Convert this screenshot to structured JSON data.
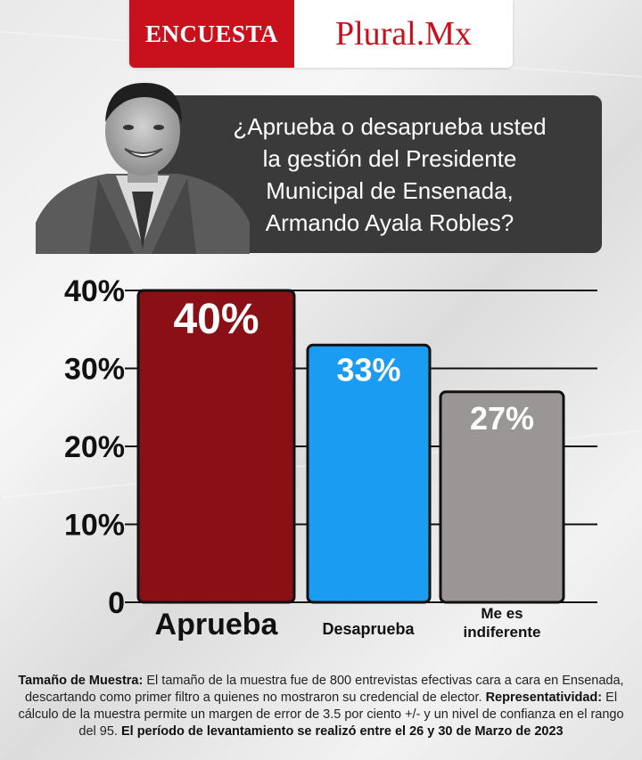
{
  "header": {
    "left_label": "ENCUESTA",
    "right_label": "Plural.Mx"
  },
  "question": {
    "lines": [
      "¿Aprueba o desaprueba usted",
      "la gestión del Presidente",
      "Municipal de Ensenada,",
      "Armando Ayala Robles?"
    ]
  },
  "chart_data": {
    "type": "bar",
    "categories": [
      "Aprueba",
      "Desaprueba",
      "Me es indiferente"
    ],
    "values": [
      40,
      33,
      27
    ],
    "value_labels": [
      "40%",
      "33%",
      "27%"
    ],
    "bar_colors": [
      "#8b1015",
      "#1a9cf2",
      "#9a9696"
    ],
    "y_ticks": [
      0,
      10,
      20,
      30,
      40
    ],
    "y_tick_labels": [
      "0",
      "10%",
      "20%",
      "30%",
      "40%"
    ],
    "ylim": [
      0,
      40
    ],
    "grid": true
  },
  "footer": {
    "sample_label": "Tamaño de Muestra:",
    "sample_text": "El tamaño de la muestra fue de 800 entrevistas efectivas cara a cara en Ensenada, descartando como primer filtro a quienes no mostraron su credencial de elector.",
    "rep_label": "Representatividad:",
    "rep_text": "El cálculo de la muestra permite un margen de error de 3.5 por ciento +/- y un nivel de confianza en el rango del 95.",
    "period_text": "El período de levantamiento se realizó entre el 26 y 30 de Marzo de 2023"
  }
}
